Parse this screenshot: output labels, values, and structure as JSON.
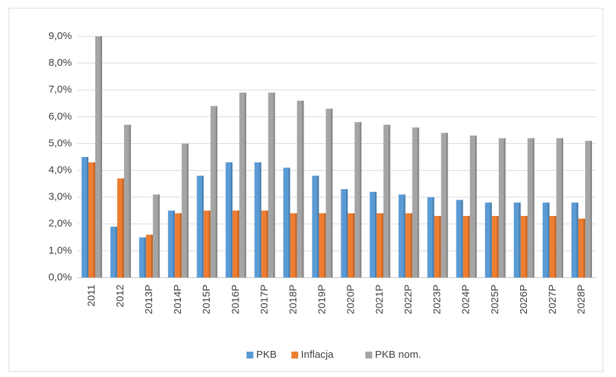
{
  "chart_data": {
    "type": "bar",
    "categories": [
      "2011",
      "2012",
      "2013P",
      "2014P",
      "2015P",
      "2016P",
      "2017P",
      "2018P",
      "2019P",
      "2020P",
      "2021P",
      "2022P",
      "2023P",
      "2024P",
      "2025P",
      "2026P",
      "2027P",
      "2028P"
    ],
    "series": [
      {
        "name": "PKB",
        "color": "#5b9bd5",
        "values": [
          4.5,
          1.9,
          1.5,
          2.5,
          3.8,
          4.3,
          4.3,
          4.1,
          3.8,
          3.3,
          3.2,
          3.1,
          3.0,
          2.9,
          2.8,
          2.8,
          2.8,
          2.8
        ]
      },
      {
        "name": "Inflacja",
        "color": "#ed7d31",
        "values": [
          4.3,
          3.7,
          1.6,
          2.4,
          2.5,
          2.5,
          2.5,
          2.4,
          2.4,
          2.4,
          2.4,
          2.4,
          2.3,
          2.3,
          2.3,
          2.3,
          2.3,
          2.2
        ]
      },
      {
        "name": "PKB nom.",
        "color": "#a5a5a5",
        "values": [
          9.0,
          5.7,
          3.1,
          5.0,
          6.4,
          6.9,
          6.9,
          6.6,
          6.3,
          5.8,
          5.7,
          5.6,
          5.4,
          5.3,
          5.2,
          5.2,
          5.2,
          5.1
        ]
      }
    ],
    "ylim": [
      0,
      9
    ],
    "yticks": [
      {
        "value": 0,
        "label": "0,0%"
      },
      {
        "value": 1,
        "label": "1,0%"
      },
      {
        "value": 2,
        "label": "2,0%"
      },
      {
        "value": 3,
        "label": "3,0%"
      },
      {
        "value": 4,
        "label": "4,0%"
      },
      {
        "value": 5,
        "label": "5,0%"
      },
      {
        "value": 6,
        "label": "6,0%"
      },
      {
        "value": 7,
        "label": "7,0%"
      },
      {
        "value": 8,
        "label": "8,0%"
      },
      {
        "value": 9,
        "label": "9,0%"
      }
    ],
    "grid": true,
    "legend": "bottom"
  }
}
